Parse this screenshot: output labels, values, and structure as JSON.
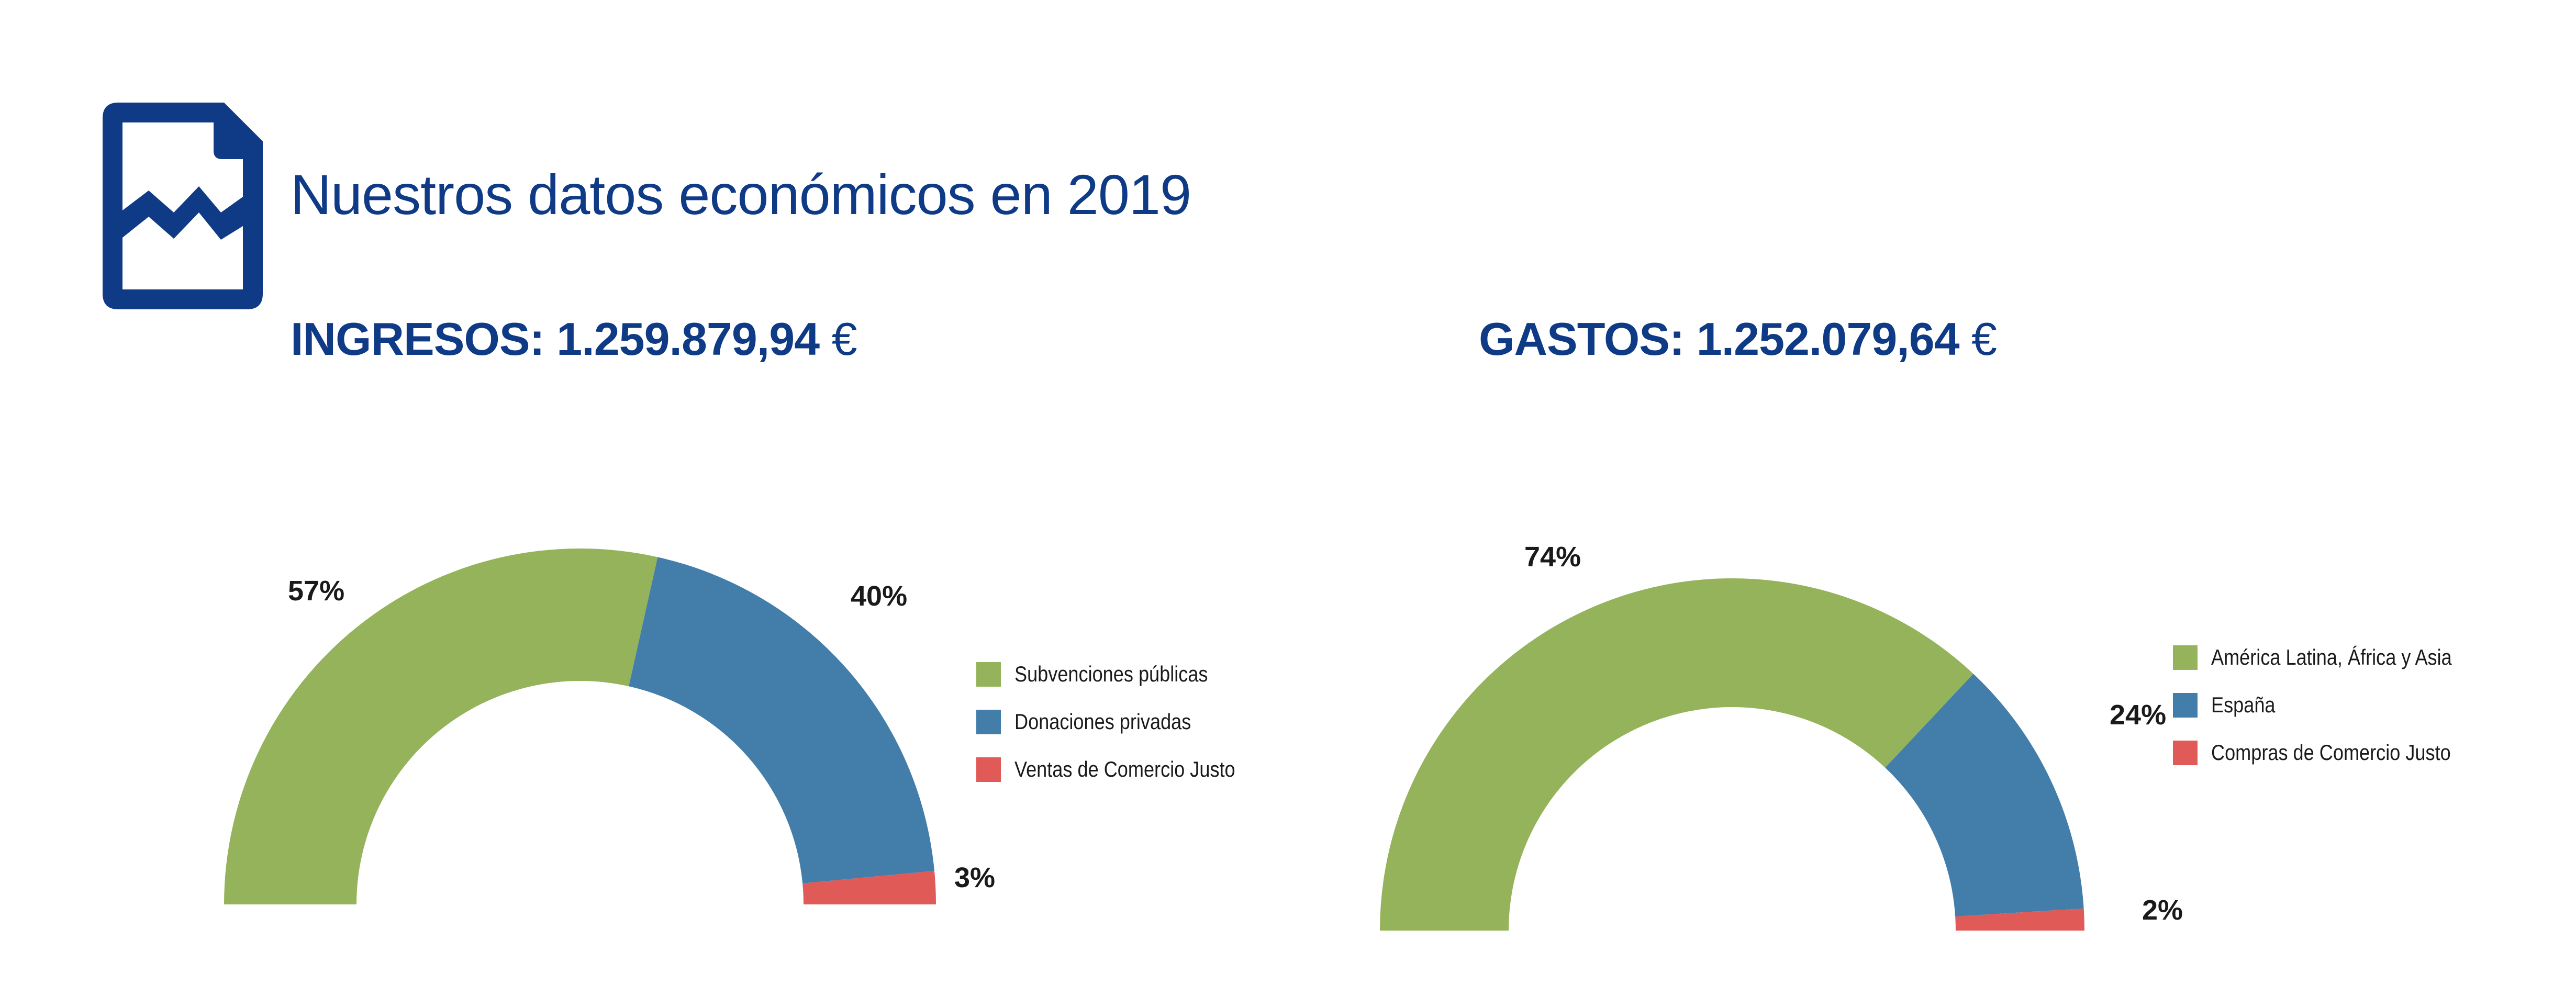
{
  "page": {
    "title": "Nuestros datos económicos en 2019"
  },
  "colors": {
    "brand_blue": "#0e3a86",
    "green": "#94b35a",
    "blue": "#437eab",
    "red": "#e05a58"
  },
  "icons": {
    "document": "document-chart-icon"
  },
  "chart_data": [
    {
      "type": "pie",
      "variant": "half-donut",
      "heading_label": "INGRESOS:",
      "heading_amount": "1.259.879,94",
      "heading_currency": "€",
      "categories": [
        "Subvenciones públicas",
        "Donaciones privadas",
        "Ventas de Comercio Justo"
      ],
      "values": [
        57,
        40,
        3
      ],
      "data_labels": [
        "57%",
        "40%",
        "3%"
      ],
      "colors": [
        "#94b35a",
        "#437eab",
        "#e05a58"
      ],
      "legend_position": "right"
    },
    {
      "type": "pie",
      "variant": "half-donut",
      "heading_label": "GASTOS:",
      "heading_amount": "1.252.079,64",
      "heading_currency": "€",
      "categories": [
        "América Latina, África y Asia",
        "España",
        "Compras de Comercio Justo"
      ],
      "values": [
        74,
        24,
        2
      ],
      "data_labels": [
        "74%",
        "24%",
        "2%"
      ],
      "colors": [
        "#94b35a",
        "#437eab",
        "#e05a58"
      ],
      "legend_position": "right"
    }
  ]
}
